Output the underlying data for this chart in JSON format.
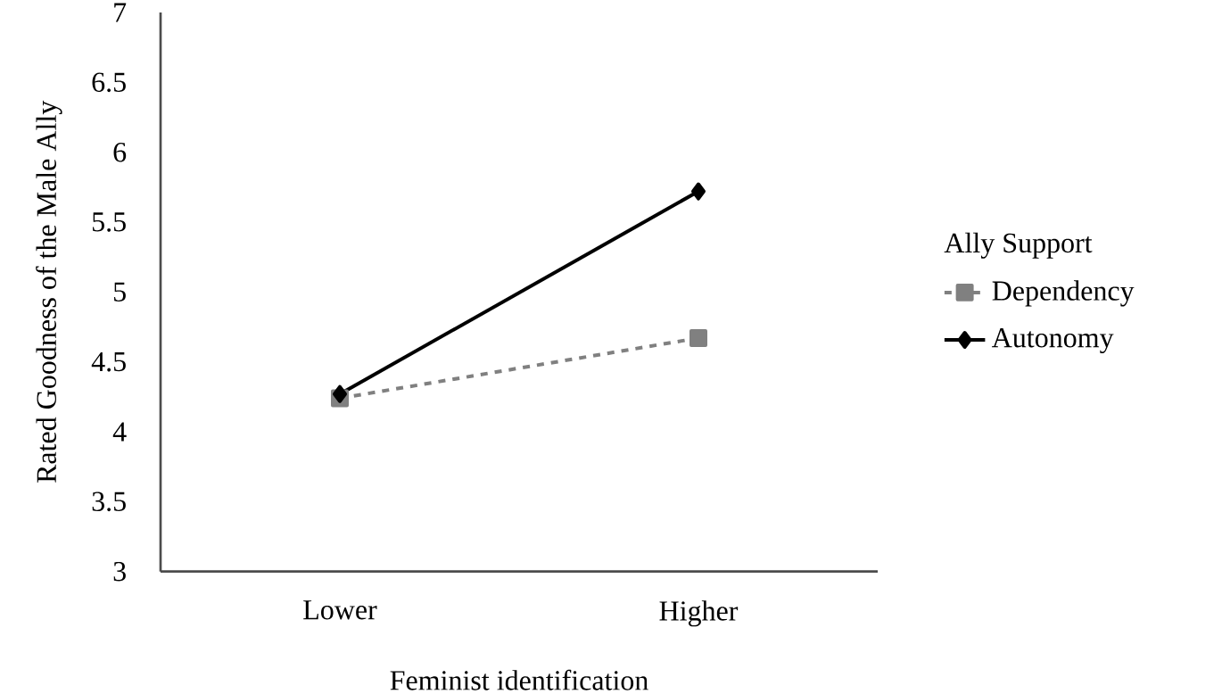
{
  "chart_data": {
    "type": "line",
    "xlabel": "Feminist identification",
    "ylabel": "Rated Goodness of the Male Ally",
    "legend_title": "Ally Support",
    "categories": [
      "Lower",
      "Higher"
    ],
    "series": [
      {
        "name": "Dependency",
        "color": "#808080",
        "values": [
          4.24,
          4.67
        ],
        "marker": "square",
        "line_style": "dashed"
      },
      {
        "name": "Autonomy",
        "color": "#000000",
        "values": [
          4.27,
          5.72
        ],
        "marker": "diamond",
        "line_style": "solid"
      }
    ],
    "ylim": [
      3,
      7
    ],
    "yticks": [
      3,
      3.5,
      4,
      4.5,
      5,
      5.5,
      6,
      6.5,
      7
    ],
    "grid": false,
    "legend": "right"
  }
}
